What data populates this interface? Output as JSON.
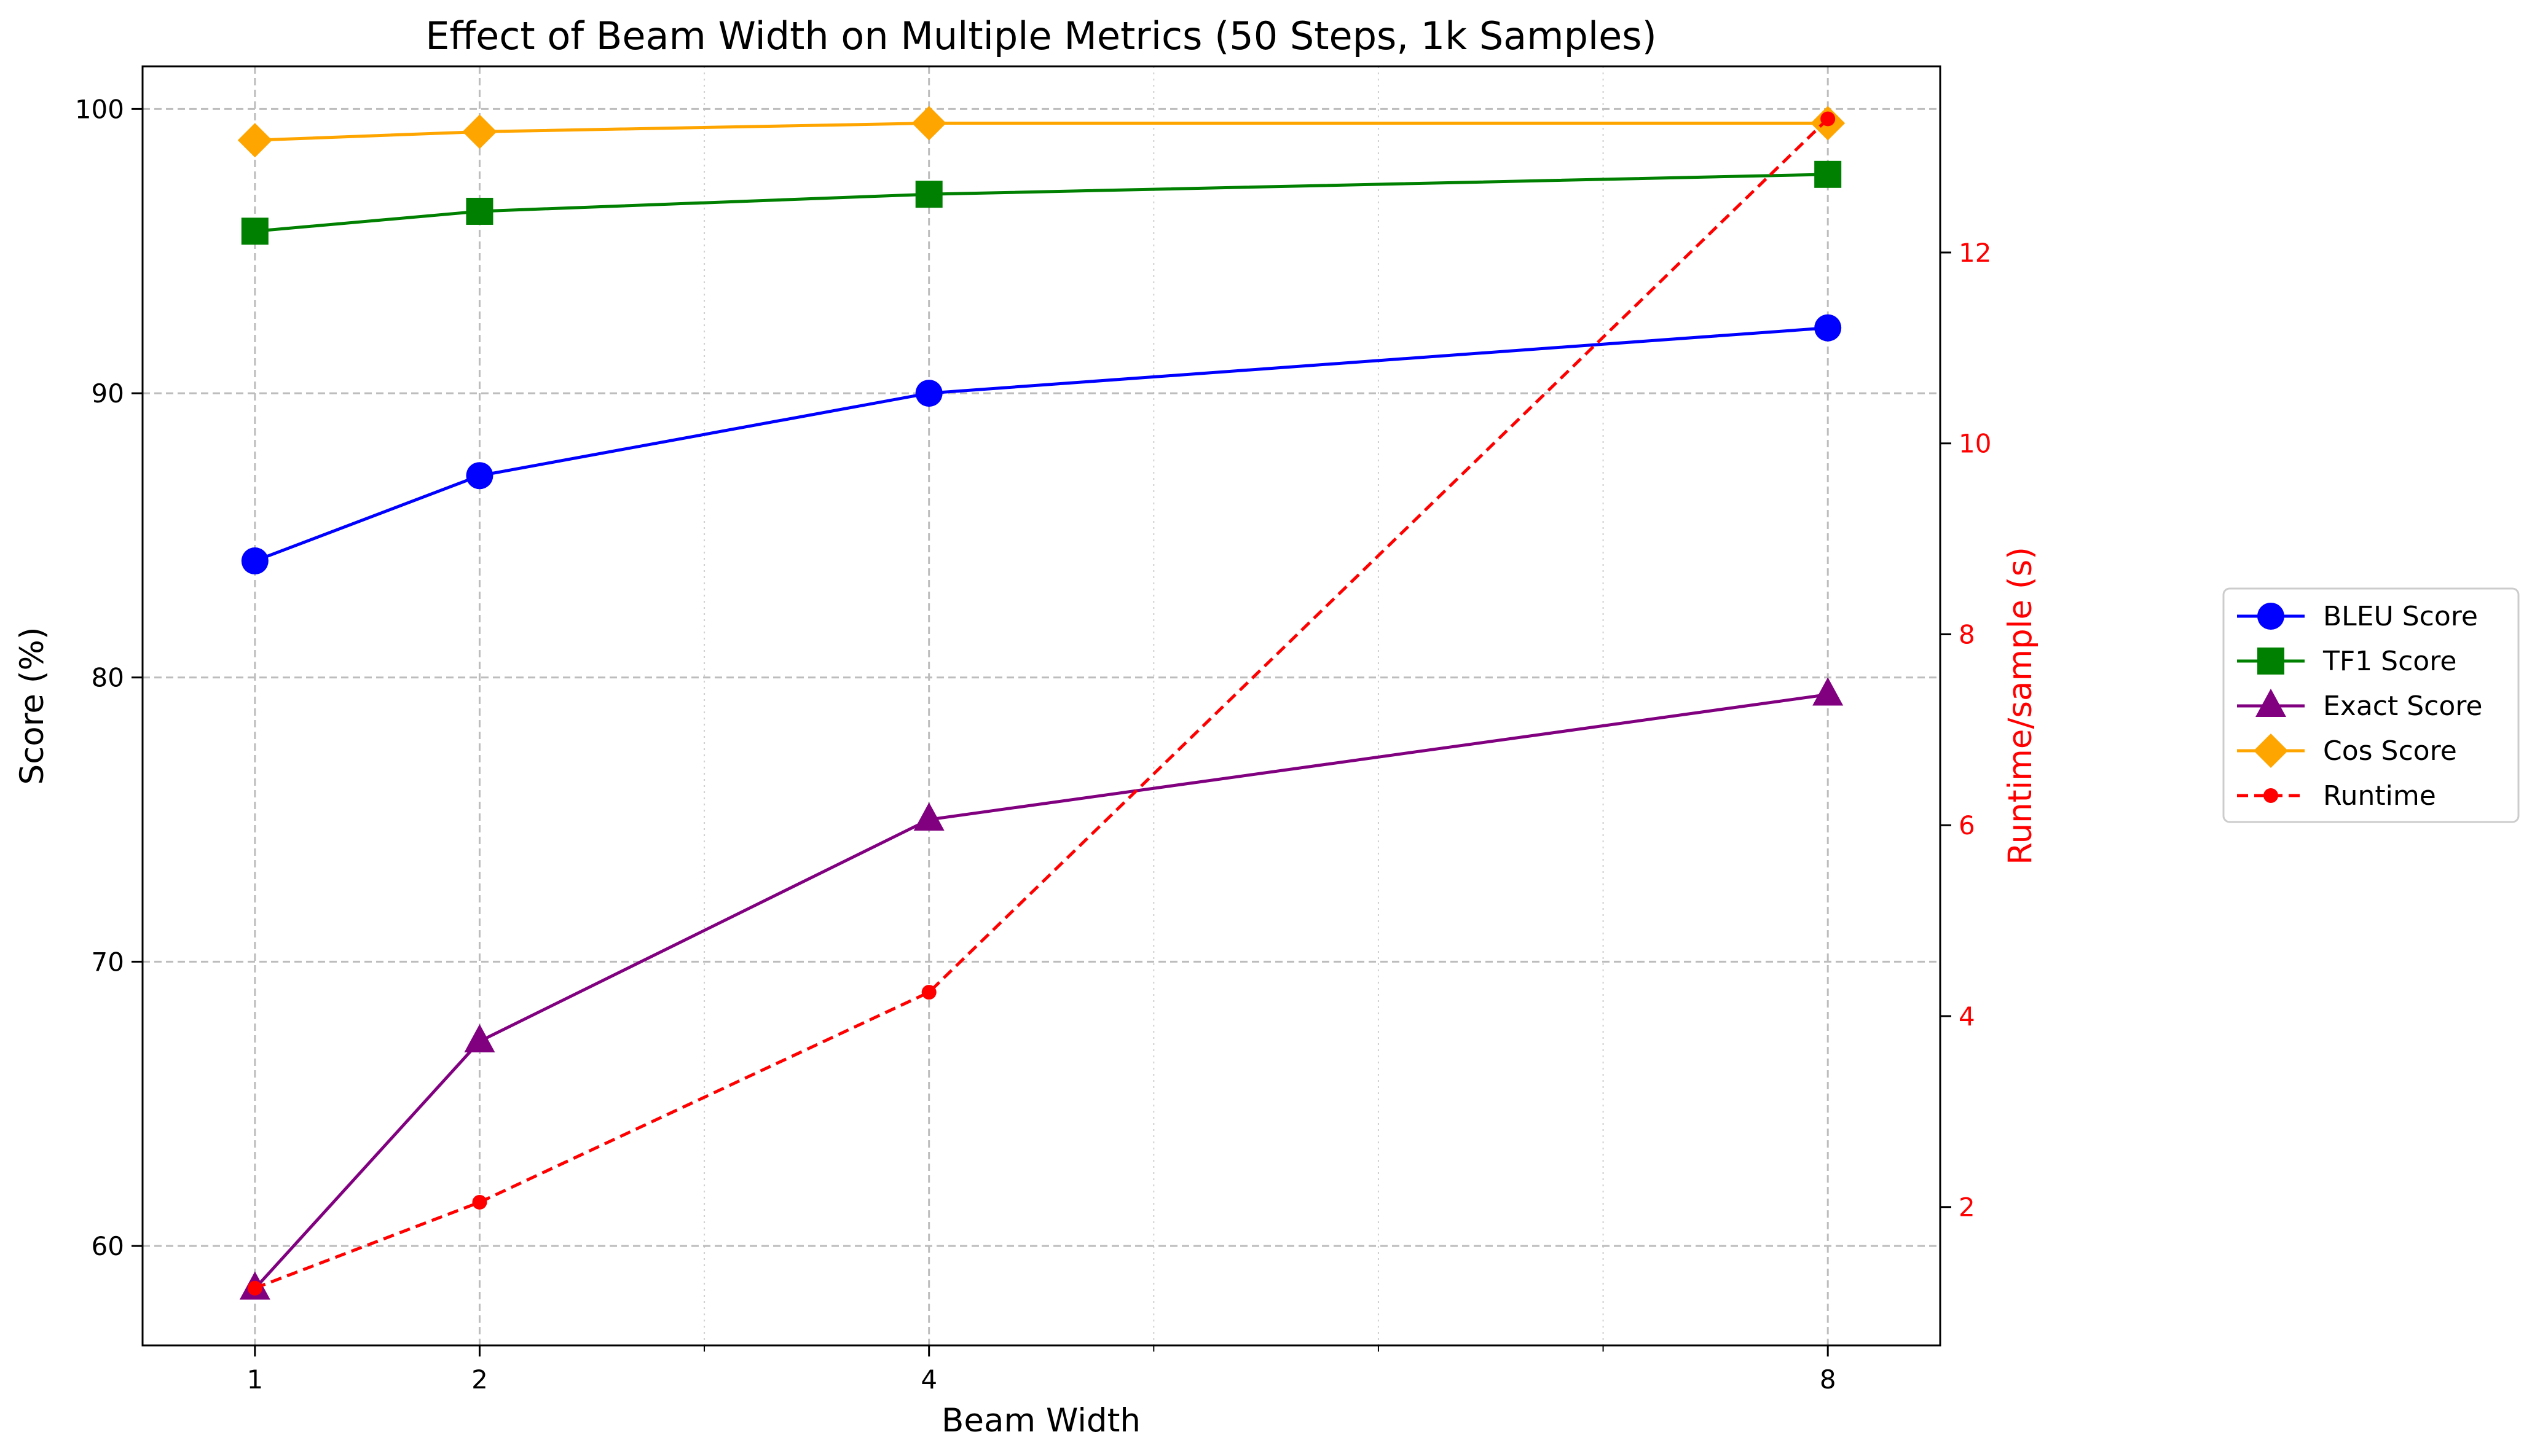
{
  "chart_data": {
    "type": "line",
    "title": "Effect of Beam Width on Multiple Metrics (50 Steps, 1k Samples)",
    "xlabel": "Beam Width",
    "ylabel": "Score (%)",
    "y2label": "Runtime/sample (s)",
    "x": [
      1,
      2,
      4,
      8
    ],
    "x_ticks": [
      "1",
      "2",
      "4",
      "8"
    ],
    "xlim": [
      0.5,
      8.5
    ],
    "ylim": [
      56.5,
      101.5
    ],
    "y2lim": [
      0.55,
      13.95
    ],
    "y_ticks": [
      60,
      70,
      80,
      90,
      100
    ],
    "y2_ticks": [
      2,
      4,
      6,
      8,
      10,
      12
    ],
    "grid": true,
    "legend_position": "right",
    "series": [
      {
        "name": "BLEU Score",
        "axis": "left",
        "color": "#0000ff",
        "marker": "circle",
        "line": "solid",
        "values": [
          84.1,
          87.1,
          90.0,
          92.3
        ]
      },
      {
        "name": "TF1 Score",
        "axis": "left",
        "color": "#008000",
        "marker": "square",
        "line": "solid",
        "values": [
          95.7,
          96.4,
          97.0,
          97.7
        ]
      },
      {
        "name": "Exact Score",
        "axis": "left",
        "color": "#800080",
        "marker": "triangle",
        "line": "solid",
        "values": [
          58.5,
          67.2,
          75.0,
          79.4
        ]
      },
      {
        "name": "Cos Score",
        "axis": "left",
        "color": "#ffa500",
        "marker": "diamond",
        "line": "solid",
        "values": [
          98.9,
          99.2,
          99.5,
          99.5
        ]
      },
      {
        "name": "Runtime",
        "axis": "right",
        "color": "#ff0000",
        "marker": "dot",
        "line": "dashed",
        "values": [
          1.15,
          2.05,
          4.25,
          13.4
        ]
      }
    ]
  }
}
